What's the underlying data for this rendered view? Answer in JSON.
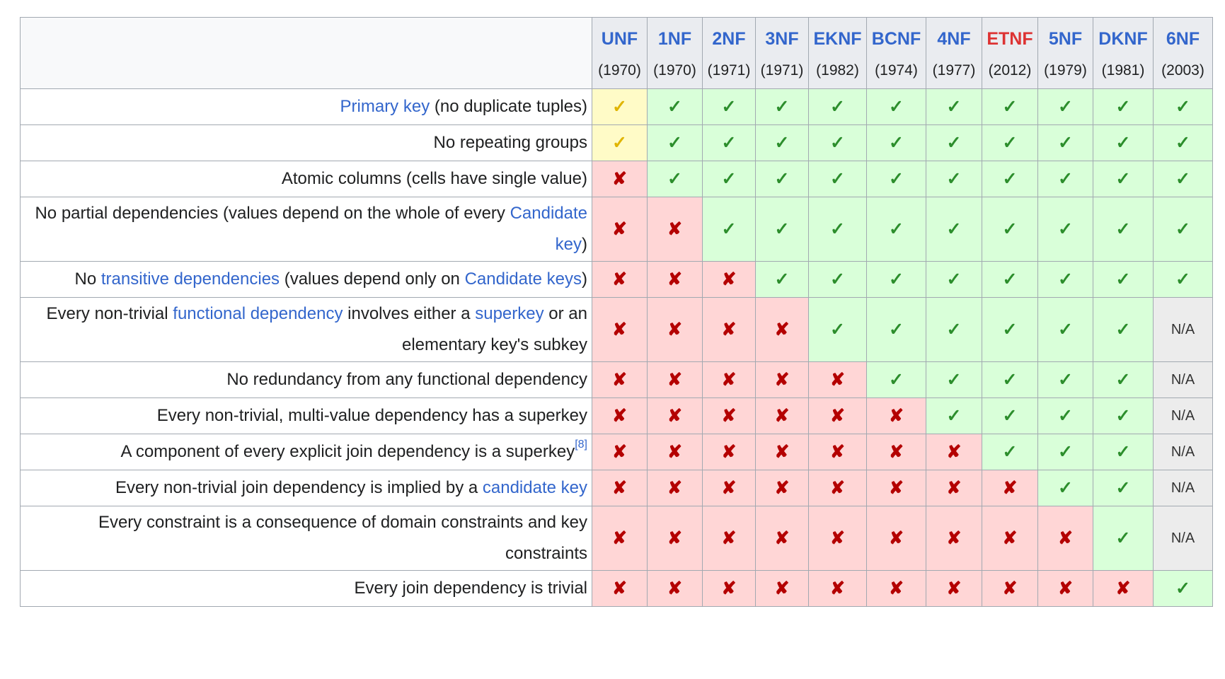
{
  "columns": [
    {
      "abbr": "UNF",
      "year": "(1970)",
      "color": "#3366cc"
    },
    {
      "abbr": "1NF",
      "year": "(1970)",
      "color": "#3366cc"
    },
    {
      "abbr": "2NF",
      "year": "(1971)",
      "color": "#3366cc"
    },
    {
      "abbr": "3NF",
      "year": "(1971)",
      "color": "#3366cc"
    },
    {
      "abbr": "EKNF",
      "year": "(1982)",
      "color": "#3366cc"
    },
    {
      "abbr": "BCNF",
      "year": "(1974)",
      "color": "#3366cc"
    },
    {
      "abbr": "4NF",
      "year": "(1977)",
      "color": "#3366cc"
    },
    {
      "abbr": "ETNF",
      "year": "(2012)",
      "color": "#dd3333"
    },
    {
      "abbr": "5NF",
      "year": "(1979)",
      "color": "#3366cc"
    },
    {
      "abbr": "DKNF",
      "year": "(1981)",
      "color": "#3366cc"
    },
    {
      "abbr": "6NF",
      "year": "(2003)",
      "color": "#3366cc"
    }
  ],
  "symbols": {
    "yes": "✓",
    "no": "✘",
    "partial": "✓",
    "na": "N/A"
  },
  "rows": [
    {
      "criterion": [
        {
          "t": "Primary key",
          "link": true
        },
        {
          "t": " (no duplicate tuples)"
        }
      ],
      "cells": [
        "partial",
        "yes",
        "yes",
        "yes",
        "yes",
        "yes",
        "yes",
        "yes",
        "yes",
        "yes",
        "yes"
      ]
    },
    {
      "criterion": [
        {
          "t": "No repeating groups"
        }
      ],
      "cells": [
        "partial",
        "yes",
        "yes",
        "yes",
        "yes",
        "yes",
        "yes",
        "yes",
        "yes",
        "yes",
        "yes"
      ]
    },
    {
      "criterion": [
        {
          "t": "Atomic columns (cells have single value)"
        }
      ],
      "cells": [
        "no",
        "yes",
        "yes",
        "yes",
        "yes",
        "yes",
        "yes",
        "yes",
        "yes",
        "yes",
        "yes"
      ]
    },
    {
      "criterion": [
        {
          "t": "No partial dependencies (values depend on the whole of every "
        },
        {
          "t": "Candidate key",
          "link": true
        },
        {
          "t": ")"
        }
      ],
      "cells": [
        "no",
        "no",
        "yes",
        "yes",
        "yes",
        "yes",
        "yes",
        "yes",
        "yes",
        "yes",
        "yes"
      ]
    },
    {
      "criterion": [
        {
          "t": "No "
        },
        {
          "t": "transitive dependencies",
          "link": true
        },
        {
          "t": " (values depend only on "
        },
        {
          "t": "Candidate keys",
          "link": true
        },
        {
          "t": ")"
        }
      ],
      "cells": [
        "no",
        "no",
        "no",
        "yes",
        "yes",
        "yes",
        "yes",
        "yes",
        "yes",
        "yes",
        "yes"
      ]
    },
    {
      "criterion": [
        {
          "t": "Every non-trivial "
        },
        {
          "t": "functional dependency",
          "link": true
        },
        {
          "t": " involves either a "
        },
        {
          "t": "superkey",
          "link": true
        },
        {
          "t": " or an elementary key's subkey"
        }
      ],
      "cells": [
        "no",
        "no",
        "no",
        "no",
        "yes",
        "yes",
        "yes",
        "yes",
        "yes",
        "yes",
        "na"
      ]
    },
    {
      "criterion": [
        {
          "t": "No redundancy from any functional dependency"
        }
      ],
      "cells": [
        "no",
        "no",
        "no",
        "no",
        "no",
        "yes",
        "yes",
        "yes",
        "yes",
        "yes",
        "na"
      ]
    },
    {
      "criterion": [
        {
          "t": "Every non-trivial, multi-value dependency has a superkey"
        }
      ],
      "cells": [
        "no",
        "no",
        "no",
        "no",
        "no",
        "no",
        "yes",
        "yes",
        "yes",
        "yes",
        "na"
      ]
    },
    {
      "criterion": [
        {
          "t": "A component of every explicit join dependency is a superkey"
        },
        {
          "t": "[8]",
          "sup": true
        }
      ],
      "cells": [
        "no",
        "no",
        "no",
        "no",
        "no",
        "no",
        "no",
        "yes",
        "yes",
        "yes",
        "na"
      ]
    },
    {
      "criterion": [
        {
          "t": "Every non-trivial join dependency is implied by a "
        },
        {
          "t": "candidate key",
          "link": true
        }
      ],
      "cells": [
        "no",
        "no",
        "no",
        "no",
        "no",
        "no",
        "no",
        "no",
        "yes",
        "yes",
        "na"
      ]
    },
    {
      "criterion": [
        {
          "t": "Every constraint is a consequence of domain constraints and key constraints"
        }
      ],
      "cells": [
        "no",
        "no",
        "no",
        "no",
        "no",
        "no",
        "no",
        "no",
        "no",
        "yes",
        "na"
      ]
    },
    {
      "criterion": [
        {
          "t": "Every join dependency is trivial"
        }
      ],
      "cells": [
        "no",
        "no",
        "no",
        "no",
        "no",
        "no",
        "no",
        "no",
        "no",
        "no",
        "yes"
      ]
    }
  ]
}
